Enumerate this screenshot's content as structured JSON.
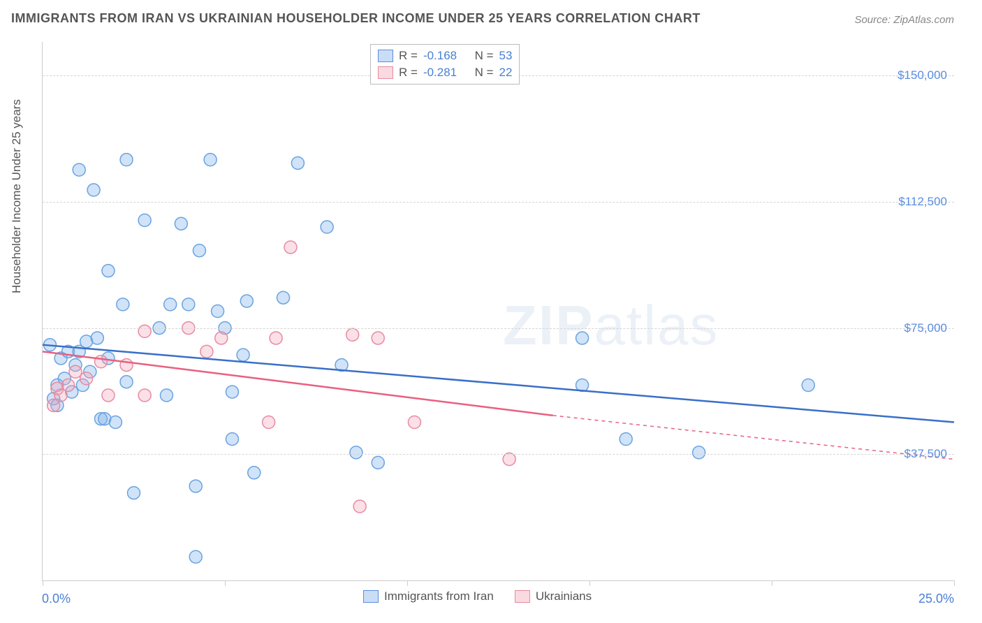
{
  "title": "IMMIGRANTS FROM IRAN VS UKRAINIAN HOUSEHOLDER INCOME UNDER 25 YEARS CORRELATION CHART",
  "source": "Source: ZipAtlas.com",
  "ylabel": "Householder Income Under 25 years",
  "watermark": {
    "bold": "ZIP",
    "light": "atlas"
  },
  "chart": {
    "type": "scatter",
    "xlim": [
      0,
      25
    ],
    "ylim": [
      0,
      160000
    ],
    "x_tick_labels": {
      "min": "0.0%",
      "max": "25.0%"
    },
    "x_ticks": [
      0,
      5,
      10,
      15,
      20,
      25
    ],
    "y_ticks": [
      {
        "value": 37500,
        "label": "$37,500"
      },
      {
        "value": 75000,
        "label": "$75,000"
      },
      {
        "value": 112500,
        "label": "$112,500"
      },
      {
        "value": 150000,
        "label": "$150,000"
      }
    ],
    "grid_color": "#d5d5d5",
    "background_color": "#ffffff",
    "axis_color": "#cccccc",
    "tick_label_color": "#5a8de0",
    "axis_range_label_color": "#4a7fd6",
    "marker_radius": 9,
    "marker_stroke_width": 1.5,
    "line_width": 2.5,
    "series": [
      {
        "id": "iran",
        "label": "Immigrants from Iran",
        "fill": "rgba(120,175,235,0.35)",
        "stroke": "#6aa3e0",
        "line_color": "#3a6fc8",
        "r": -0.168,
        "n": 53,
        "regression": {
          "x1": 0,
          "y1": 70000,
          "x2": 25,
          "y2": 47000,
          "dash_after_x": 25
        },
        "points": [
          {
            "x": 0.2,
            "y": 70000
          },
          {
            "x": 0.3,
            "y": 54000
          },
          {
            "x": 0.4,
            "y": 58000
          },
          {
            "x": 0.4,
            "y": 52000
          },
          {
            "x": 0.5,
            "y": 66000
          },
          {
            "x": 0.6,
            "y": 60000
          },
          {
            "x": 0.7,
            "y": 68000
          },
          {
            "x": 0.8,
            "y": 56000
          },
          {
            "x": 0.9,
            "y": 64000
          },
          {
            "x": 1.0,
            "y": 122000
          },
          {
            "x": 1.0,
            "y": 68000
          },
          {
            "x": 1.1,
            "y": 58000
          },
          {
            "x": 1.2,
            "y": 71000
          },
          {
            "x": 1.3,
            "y": 62000
          },
          {
            "x": 1.4,
            "y": 116000
          },
          {
            "x": 1.5,
            "y": 72000
          },
          {
            "x": 1.6,
            "y": 48000
          },
          {
            "x": 1.7,
            "y": 48000
          },
          {
            "x": 1.8,
            "y": 92000
          },
          {
            "x": 1.8,
            "y": 66000
          },
          {
            "x": 2.0,
            "y": 47000
          },
          {
            "x": 2.2,
            "y": 82000
          },
          {
            "x": 2.3,
            "y": 125000
          },
          {
            "x": 2.3,
            "y": 59000
          },
          {
            "x": 2.5,
            "y": 26000
          },
          {
            "x": 2.8,
            "y": 107000
          },
          {
            "x": 3.2,
            "y": 75000
          },
          {
            "x": 3.4,
            "y": 55000
          },
          {
            "x": 3.5,
            "y": 82000
          },
          {
            "x": 3.8,
            "y": 106000
          },
          {
            "x": 4.0,
            "y": 82000
          },
          {
            "x": 4.2,
            "y": 28000
          },
          {
            "x": 4.2,
            "y": 7000
          },
          {
            "x": 4.3,
            "y": 98000
          },
          {
            "x": 4.6,
            "y": 125000
          },
          {
            "x": 4.8,
            "y": 80000
          },
          {
            "x": 5.0,
            "y": 75000
          },
          {
            "x": 5.2,
            "y": 56000
          },
          {
            "x": 5.2,
            "y": 42000
          },
          {
            "x": 5.5,
            "y": 67000
          },
          {
            "x": 5.6,
            "y": 83000
          },
          {
            "x": 5.8,
            "y": 32000
          },
          {
            "x": 6.6,
            "y": 84000
          },
          {
            "x": 7.0,
            "y": 124000
          },
          {
            "x": 7.8,
            "y": 105000
          },
          {
            "x": 8.2,
            "y": 64000
          },
          {
            "x": 8.6,
            "y": 38000
          },
          {
            "x": 9.2,
            "y": 35000
          },
          {
            "x": 14.8,
            "y": 72000
          },
          {
            "x": 14.8,
            "y": 58000
          },
          {
            "x": 16.0,
            "y": 42000
          },
          {
            "x": 18.0,
            "y": 38000
          },
          {
            "x": 21.0,
            "y": 58000
          }
        ]
      },
      {
        "id": "ukrainians",
        "label": "Ukrainians",
        "fill": "rgba(245,165,185,0.35)",
        "stroke": "#e88aa0",
        "line_color": "#e8607f",
        "r": -0.281,
        "n": 22,
        "regression": {
          "x1": 0,
          "y1": 68000,
          "x2": 14,
          "y2": 49000,
          "dash_after_x": 14,
          "dash_x2": 25,
          "dash_y2": 36000
        },
        "points": [
          {
            "x": 0.3,
            "y": 52000
          },
          {
            "x": 0.4,
            "y": 57000
          },
          {
            "x": 0.5,
            "y": 55000
          },
          {
            "x": 0.7,
            "y": 58000
          },
          {
            "x": 0.9,
            "y": 62000
          },
          {
            "x": 1.2,
            "y": 60000
          },
          {
            "x": 1.6,
            "y": 65000
          },
          {
            "x": 1.8,
            "y": 55000
          },
          {
            "x": 2.3,
            "y": 64000
          },
          {
            "x": 2.8,
            "y": 74000
          },
          {
            "x": 2.8,
            "y": 55000
          },
          {
            "x": 4.0,
            "y": 75000
          },
          {
            "x": 4.5,
            "y": 68000
          },
          {
            "x": 4.9,
            "y": 72000
          },
          {
            "x": 6.2,
            "y": 47000
          },
          {
            "x": 6.4,
            "y": 72000
          },
          {
            "x": 6.8,
            "y": 99000
          },
          {
            "x": 8.5,
            "y": 73000
          },
          {
            "x": 8.7,
            "y": 22000
          },
          {
            "x": 9.2,
            "y": 72000
          },
          {
            "x": 10.2,
            "y": 47000
          },
          {
            "x": 12.8,
            "y": 36000
          }
        ]
      }
    ],
    "legend_top_rows": [
      {
        "series": 0,
        "r_label": "R =",
        "r_value": "-0.168",
        "n_label": "N =",
        "n_value": "53"
      },
      {
        "series": 1,
        "r_label": "R =",
        "r_value": "-0.281",
        "n_label": "N =",
        "n_value": "22"
      }
    ]
  }
}
